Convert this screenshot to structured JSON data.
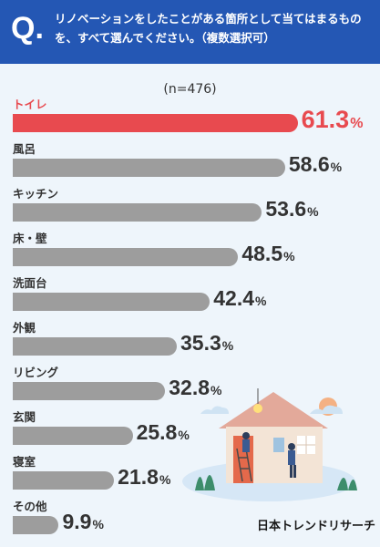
{
  "header": {
    "q_mark": "Q.",
    "question": "リノベーションをしたことがある箇所として当てはまるものを、すべて選んでください。（複数選択可）"
  },
  "sample_label": "(n=476)",
  "brand": "日本トレンドリサーチ",
  "colors": {
    "header": "#2457b4",
    "highlight": "#e84a4f",
    "bar": "#9d9d9d",
    "background": "#eef5fb"
  },
  "chart_data": {
    "type": "bar",
    "orientation": "horizontal",
    "categories": [
      "トイレ",
      "風呂",
      "キッチン",
      "床・壁",
      "洗面台",
      "外観",
      "リビング",
      "玄関",
      "寝室",
      "その他"
    ],
    "values": [
      61.3,
      58.6,
      53.6,
      48.5,
      42.4,
      35.3,
      32.8,
      25.8,
      21.8,
      9.9
    ],
    "value_labels": [
      "61.3",
      "58.6",
      "53.6",
      "48.5",
      "42.4",
      "35.3",
      "32.8",
      "25.8",
      "21.8",
      "9.9"
    ],
    "unit": "%",
    "highlight_index": 0,
    "title": "",
    "xlabel": "",
    "ylabel": "",
    "xlim": [
      0,
      100
    ],
    "grid": false,
    "legend": "none"
  }
}
